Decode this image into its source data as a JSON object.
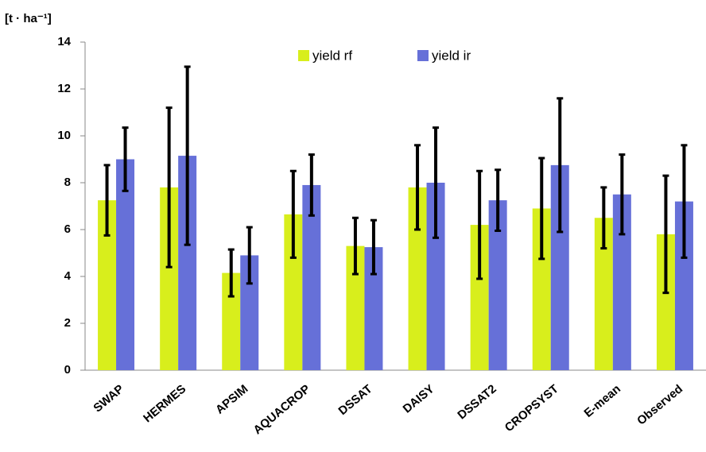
{
  "chart_data": {
    "type": "bar",
    "y_label": "[t · ha⁻¹]",
    "categories": [
      "SWAP",
      "HERMES",
      "APSIM",
      "AQUACROP",
      "DSSAT",
      "DAISY",
      "DSSAT2",
      "CROPSYST",
      "E-mean",
      "Observed"
    ],
    "series": [
      {
        "name": "yield rf",
        "color": "#d8ee1c",
        "values": [
          7.25,
          7.8,
          4.15,
          6.65,
          5.3,
          7.8,
          6.2,
          6.9,
          6.5,
          5.8
        ],
        "errors": [
          1.5,
          3.4,
          1.0,
          1.85,
          1.2,
          1.8,
          2.3,
          2.15,
          1.3,
          2.5
        ]
      },
      {
        "name": "yield ir",
        "color": "#6670d8",
        "values": [
          9.0,
          9.15,
          4.9,
          7.9,
          5.25,
          8.0,
          7.25,
          8.75,
          7.5,
          7.2
        ],
        "errors": [
          1.35,
          3.8,
          1.2,
          1.3,
          1.15,
          2.35,
          1.3,
          2.85,
          1.7,
          2.4
        ]
      }
    ],
    "ylim": [
      0,
      14
    ],
    "yticks": [
      0,
      2,
      4,
      6,
      8,
      10,
      12,
      14
    ],
    "grid": false,
    "legend": "top"
  }
}
